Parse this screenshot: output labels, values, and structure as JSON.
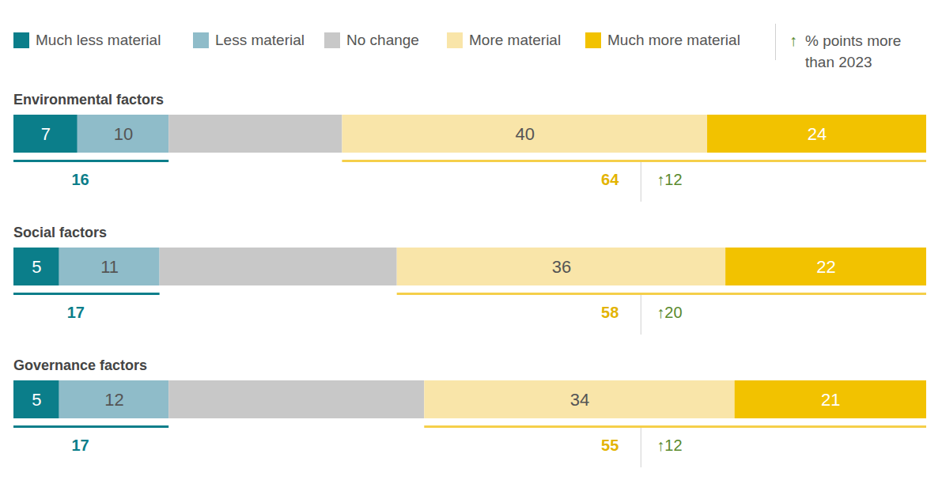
{
  "chart_data": {
    "type": "bar",
    "orientation": "horizontal",
    "stacked": true,
    "data_labels": true,
    "tick_labels": false,
    "xlim": [
      0,
      100
    ],
    "categories": [
      "Environmental factors",
      "Social factors",
      "Governance factors"
    ],
    "series": [
      {
        "name": "Much less material",
        "color": "#0b7e8a",
        "values": [
          7,
          5,
          5
        ]
      },
      {
        "name": "Less material",
        "color": "#8fbcc9",
        "values": [
          10,
          11,
          12
        ]
      },
      {
        "name": "No change",
        "color": "#c8c8c8",
        "values": [
          19,
          26,
          28
        ],
        "data_labels": false
      },
      {
        "name": "More material",
        "color": "#f9e5a9",
        "values": [
          40,
          36,
          34
        ]
      },
      {
        "name": "Much more material",
        "color": "#f2c200",
        "values": [
          24,
          22,
          21
        ]
      }
    ],
    "less_material_totals": [
      16,
      17,
      17
    ],
    "more_material_totals": [
      64,
      58,
      55
    ],
    "change_vs_2023": {
      "label": "% points more than 2023",
      "symbol": "↑",
      "values": [
        12,
        20,
        12
      ]
    }
  }
}
